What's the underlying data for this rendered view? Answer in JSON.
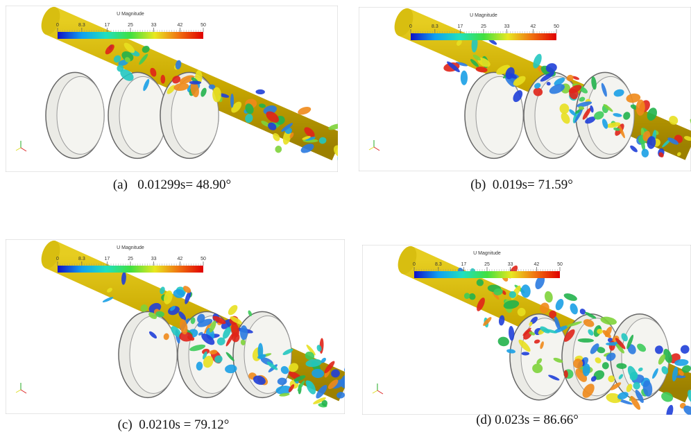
{
  "panels": [
    {
      "colorbar": {
        "title": "U Magnitude",
        "ticks": [
          0,
          8.3,
          17,
          25,
          33,
          42,
          50
        ]
      },
      "caption": "(a)   0.01299s= 48.90°"
    },
    {
      "colorbar": {
        "title": "U Magnitude",
        "ticks": [
          0,
          8.3,
          17,
          25,
          33,
          42,
          50
        ]
      },
      "caption": "(b)  0.019s= 71.59°"
    },
    {
      "colorbar": {
        "title": "U Magnitude",
        "ticks": [
          0,
          8.3,
          17,
          25,
          33,
          42,
          50
        ]
      },
      "caption": "(c)  0.0210s = 79.12°"
    },
    {
      "colorbar": {
        "title": "U Magnitude",
        "ticks": [
          0,
          8.3,
          17,
          25,
          33,
          42,
          50
        ]
      },
      "caption": "(d) 0.023s = 86.66°"
    }
  ]
}
